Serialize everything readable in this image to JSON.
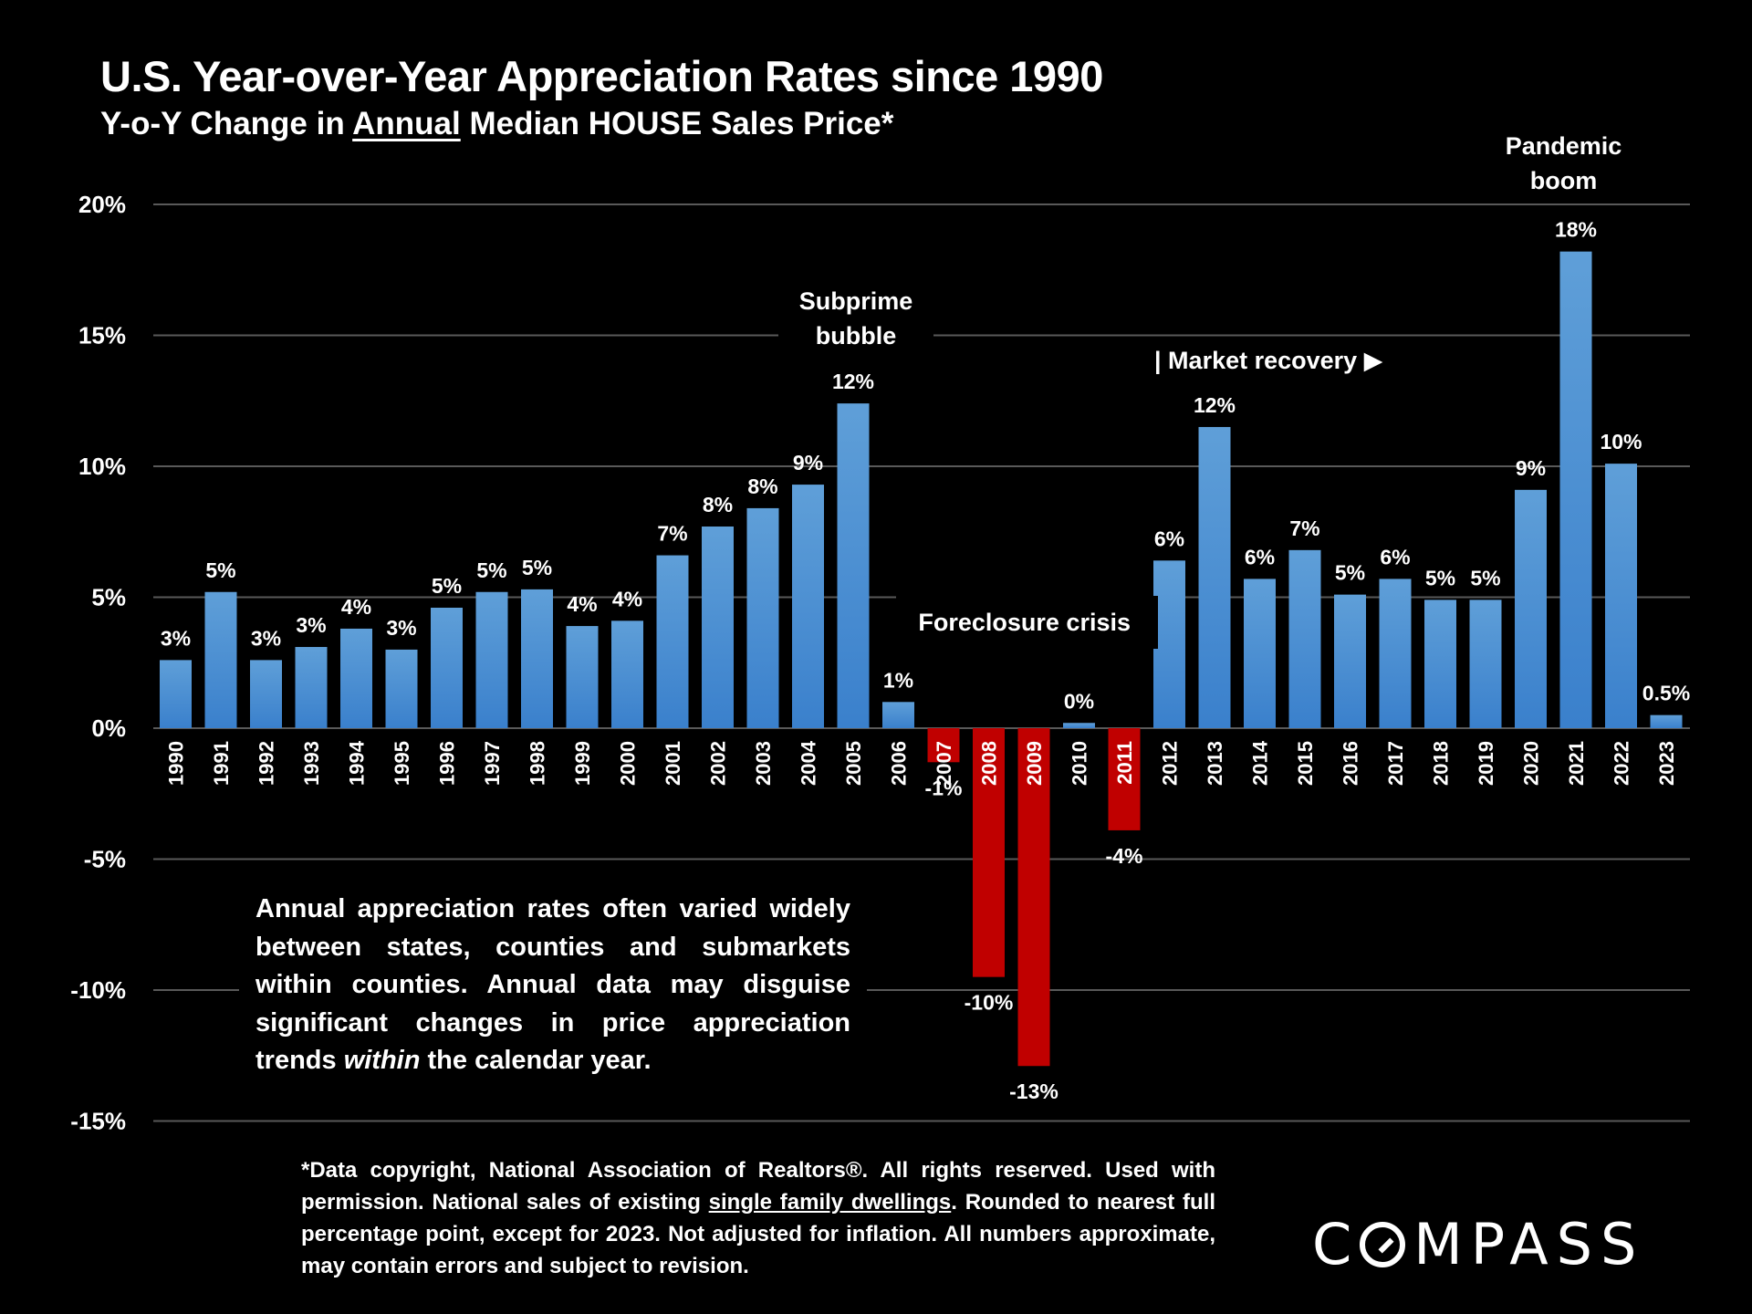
{
  "header": {
    "title": "U.S. Year-over-Year Appreciation Rates since 1990",
    "subtitle_prefix": "Y-o-Y Change in ",
    "subtitle_underlined": "Annual",
    "subtitle_suffix": " Median HOUSE Sales Price*"
  },
  "annotations": {
    "subprime": [
      "Subprime",
      "bubble"
    ],
    "foreclosure": "Foreclosure crisis",
    "recovery": "| Market recovery ▶",
    "pandemic": [
      "Pandemic",
      "boom"
    ]
  },
  "note": {
    "before_italic": "Annual appreciation rates often varied widely between states, counties and submarkets within counties. Annual data may disguise significant changes in price appreciation trends ",
    "italic": "within",
    "after_italic": " the calendar year."
  },
  "footnote": {
    "part1": "*Data copyright, National Association of Realtors®. All rights reserved. Used with permission. National sales of existing ",
    "underlined": "single family dwellings",
    "part2": ". Rounded to nearest full percentage point, except for 2023. Not adjusted for inflation. All numbers approximate, may contain errors and subject to revision."
  },
  "logo": {
    "text_before": "C",
    "text_after": "MPASS",
    "icon": "compass-o-icon"
  },
  "colors": {
    "positive_top": "#5f9fd8",
    "positive_bottom": "#3a80cc",
    "negative": "#c00000",
    "gridline": "#595959",
    "background": "#000000"
  },
  "chart_data": {
    "type": "bar",
    "title": "U.S. Year-over-Year Appreciation Rates since 1990",
    "subtitle": "Y-o-Y Change in Annual Median HOUSE Sales Price*",
    "xlabel": "",
    "ylabel": "",
    "ylim": [
      -15,
      20
    ],
    "yticks": [
      20,
      15,
      10,
      5,
      0,
      -5,
      -10,
      -15
    ],
    "ytick_labels": [
      "20%",
      "15%",
      "10%",
      "5%",
      "0%",
      "-5%",
      "-10%",
      "-15%"
    ],
    "grid": true,
    "legend": "none",
    "categories": [
      "1990",
      "1991",
      "1992",
      "1993",
      "1994",
      "1995",
      "1996",
      "1997",
      "1998",
      "1999",
      "2000",
      "2001",
      "2002",
      "2003",
      "2004",
      "2005",
      "2006",
      "2007",
      "2008",
      "2009",
      "2010",
      "2011",
      "2012",
      "2013",
      "2014",
      "2015",
      "2016",
      "2017",
      "2018",
      "2019",
      "2020",
      "2021",
      "2022",
      "2023"
    ],
    "values": [
      2.6,
      5.2,
      2.6,
      3.1,
      3.8,
      3.0,
      4.6,
      5.2,
      5.3,
      3.9,
      4.1,
      6.6,
      7.7,
      8.4,
      9.3,
      12.4,
      1.0,
      -1.3,
      -9.5,
      -12.9,
      0.2,
      -3.9,
      6.4,
      11.5,
      5.7,
      6.8,
      5.1,
      5.7,
      4.9,
      4.9,
      9.1,
      18.2,
      10.1,
      0.5
    ],
    "data_labels": [
      "3%",
      "5%",
      "3%",
      "3%",
      "4%",
      "3%",
      "5%",
      "5%",
      "5%",
      "4%",
      "4%",
      "7%",
      "8%",
      "8%",
      "9%",
      "12%",
      "1%",
      "-1%",
      "-10%",
      "-13%",
      "0%",
      "-4%",
      "6%",
      "12%",
      "6%",
      "7%",
      "5%",
      "6%",
      "5%",
      "5%",
      "9%",
      "18%",
      "10%",
      "0.5%"
    ],
    "annotations": [
      "Subprime bubble",
      "Foreclosure crisis",
      "| Market recovery ▶",
      "Pandemic boom"
    ]
  }
}
